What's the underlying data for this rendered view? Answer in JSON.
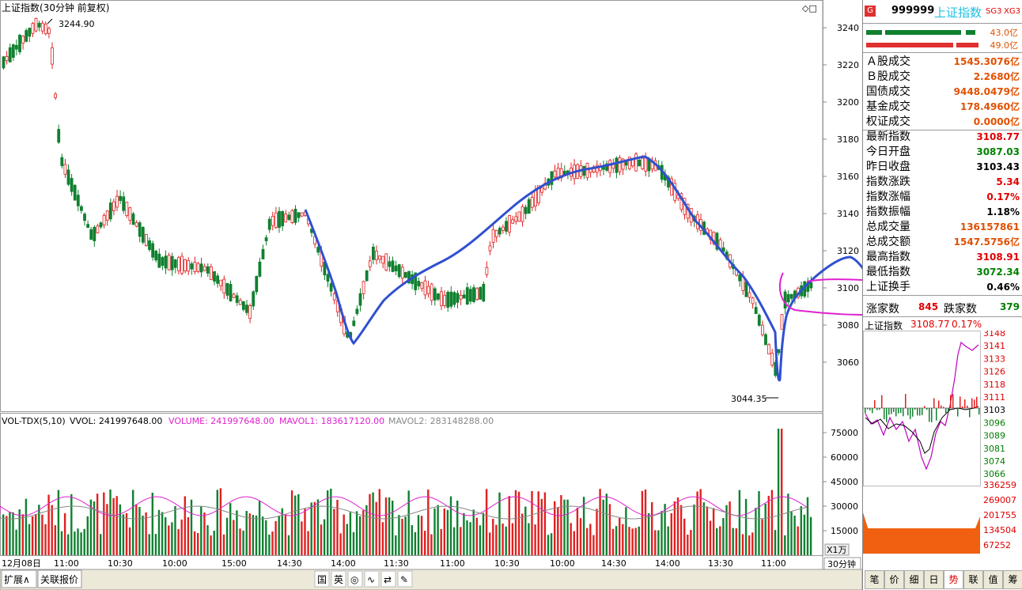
{
  "chart_panel": {
    "title": "上证指数(30分钟 前复权)",
    "corner_icons": "◇□",
    "y_ticks": [
      "3240",
      "3220",
      "3200",
      "3180",
      "3160",
      "3140",
      "3120",
      "3100",
      "3080",
      "3060"
    ],
    "high_marker": "3244.90",
    "low_marker": "3044.35",
    "x_labels": [
      "12月08日",
      "11:00",
      "10:30",
      "10:00",
      "15:00",
      "14:30",
      "14:00",
      "11:30",
      "11:00",
      "10:30",
      "10:00",
      "14:30",
      "14:00",
      "13:30",
      "11:00"
    ],
    "period_label": "30分钟",
    "x1_label": "X1万"
  },
  "volume_panel": {
    "indicator": "VOL-TDX(5,10)",
    "vvol": "VVOL: 241997648.00",
    "volume": "VOLUME: 241997648.00",
    "mavol1": "MAVOL1: 183617120.00",
    "mavol2": "MAVOL2: 283148288.00",
    "y_ticks": [
      "75000",
      "60000",
      "45000",
      "30000",
      "15000"
    ]
  },
  "bottom_bar": {
    "left_tabs": [
      "扩展∧",
      "关联报价"
    ],
    "tools": [
      "国",
      "英",
      "◎",
      "∿",
      "⇄",
      "✎"
    ]
  },
  "sidebar": {
    "code": "999999",
    "name": "上证指数",
    "badge": "G",
    "tags": [
      "SG3",
      "XG3"
    ],
    "bar1_value": "43.0亿",
    "bar2_value": "49.0亿",
    "rows": [
      {
        "label": "Ａ股成交",
        "value": "1545.3076亿",
        "color": "#e05000"
      },
      {
        "label": "Ｂ股成交",
        "value": "2.2680亿",
        "color": "#e05000"
      },
      {
        "label": "国债成交",
        "value": "9448.0479亿",
        "color": "#e05000"
      },
      {
        "label": "基金成交",
        "value": "178.4960亿",
        "color": "#e05000"
      },
      {
        "label": "权证成交",
        "value": "0.0000亿",
        "color": "#e05000"
      },
      {
        "label": "最新指数",
        "value": "3108.77",
        "color": "#e00000"
      },
      {
        "label": "今日开盘",
        "value": "3087.03",
        "color": "#008000"
      },
      {
        "label": "昨日收盘",
        "value": "3103.43",
        "color": "#000000"
      },
      {
        "label": "指数涨跌",
        "value": "5.34",
        "color": "#e00000"
      },
      {
        "label": "指数涨幅",
        "value": "0.17%",
        "color": "#e00000"
      },
      {
        "label": "指数振幅",
        "value": "1.18%",
        "color": "#000000"
      },
      {
        "label": "总成交量",
        "value": "136157861",
        "color": "#e05000"
      },
      {
        "label": "总成交额",
        "value": "1547.5756亿",
        "color": "#e05000"
      },
      {
        "label": "最高指数",
        "value": "3108.91",
        "color": "#e00000"
      },
      {
        "label": "最低指数",
        "value": "3072.34",
        "color": "#008000"
      },
      {
        "label": "上证换手",
        "value": "0.46%",
        "color": "#000000"
      }
    ],
    "updown": {
      "up_label": "涨家数",
      "up_value": "845",
      "down_label": "跌家数",
      "down_value": "379"
    },
    "mini_title": "上证指数",
    "mini_price": "3108.77",
    "mini_change": "0.17%",
    "mini_price_ticks": [
      "3148",
      "3141",
      "3133",
      "3126",
      "3118",
      "3111",
      "3103",
      "3096",
      "3089",
      "3081",
      "3074",
      "3066"
    ],
    "mini_vol_ticks": [
      "336259",
      "269007",
      "201755",
      "134504",
      "67252"
    ],
    "tabs": [
      "笔",
      "价",
      "细",
      "日",
      "势",
      "联",
      "值",
      "筹"
    ]
  }
}
